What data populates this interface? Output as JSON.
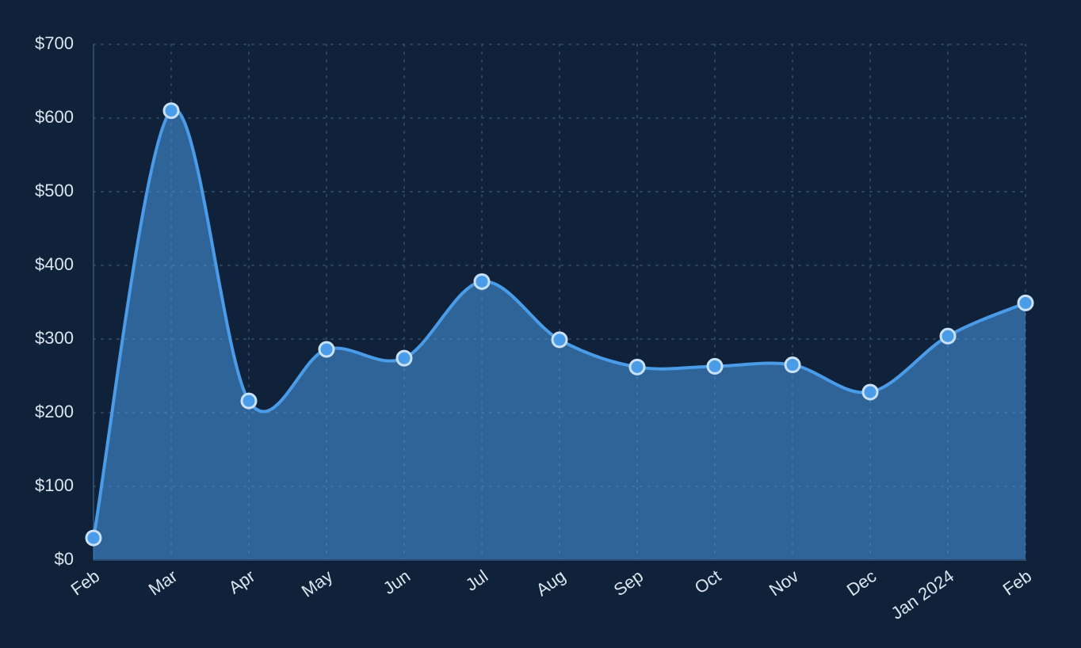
{
  "chart_data": {
    "type": "area",
    "categories": [
      "Feb",
      "Mar",
      "Apr",
      "May",
      "Jun",
      "Jul",
      "Aug",
      "Sep",
      "Oct",
      "Nov",
      "Dec",
      "Jan 2024",
      "Feb"
    ],
    "values": [
      30,
      610,
      216,
      286,
      274,
      378,
      299,
      262,
      263,
      265,
      228,
      304,
      349
    ],
    "color": "#4a9be8",
    "ylim": [
      0,
      700
    ],
    "yticks": [
      {
        "value": 0,
        "label": "$0"
      },
      {
        "value": 100,
        "label": "$100"
      },
      {
        "value": 200,
        "label": "$200"
      },
      {
        "value": 300,
        "label": "$300"
      },
      {
        "value": 400,
        "label": "$400"
      },
      {
        "value": 500,
        "label": "$500"
      },
      {
        "value": 600,
        "label": "$600"
      },
      {
        "value": 700,
        "label": "$700"
      }
    ],
    "grid": true
  }
}
